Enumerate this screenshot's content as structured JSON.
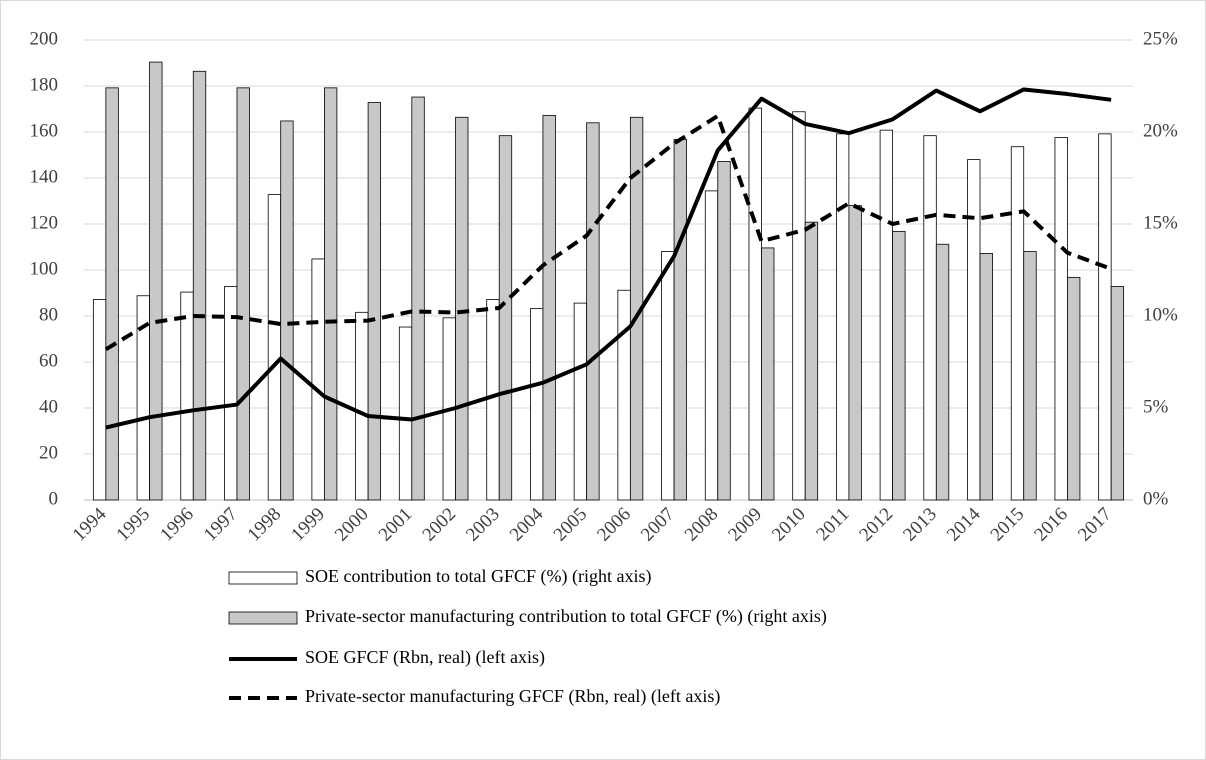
{
  "chart_data": {
    "type": "bar",
    "categories": [
      "1994",
      "1995",
      "1996",
      "1997",
      "1998",
      "1999",
      "2000",
      "2001",
      "2002",
      "2003",
      "2004",
      "2005",
      "2006",
      "2007",
      "2008",
      "2009",
      "2010",
      "2011",
      "2012",
      "2013",
      "2014",
      "2015",
      "2016",
      "2017"
    ],
    "ylim": [
      0,
      200
    ],
    "yticks": [
      0,
      20,
      40,
      60,
      80,
      100,
      120,
      140,
      160,
      180,
      200
    ],
    "y2lim": [
      0,
      25
    ],
    "y2ticks": [
      {
        "value": 0,
        "label": "0%"
      },
      {
        "value": 5,
        "label": "5%"
      },
      {
        "value": 10,
        "label": "10%"
      },
      {
        "value": 15,
        "label": "15%"
      },
      {
        "value": 20,
        "label": "20%"
      },
      {
        "value": 25,
        "label": "25%"
      }
    ],
    "grid": true,
    "legend": "bottom",
    "series": [
      {
        "name": "SOE contribution to total GFCF (%) (right axis)",
        "type": "bar",
        "axis": "y2",
        "color": "#ffffff",
        "values": [
          10.9,
          11.1,
          11.3,
          11.6,
          16.6,
          13.1,
          10.2,
          9.4,
          9.9,
          10.9,
          10.4,
          10.7,
          11.4,
          13.5,
          16.8,
          21.3,
          21.1,
          19.9,
          20.1,
          19.8,
          18.5,
          19.2,
          19.7,
          19.9
        ]
      },
      {
        "name": "Private-sector manufacturing contribution to total GFCF (%) (right axis)",
        "type": "bar",
        "axis": "y2",
        "color": "#c8c8c8",
        "values": [
          22.4,
          23.8,
          23.3,
          22.4,
          20.6,
          22.4,
          21.6,
          21.9,
          20.8,
          19.8,
          20.9,
          20.5,
          20.8,
          19.6,
          18.4,
          13.7,
          15.1,
          16.0,
          14.6,
          13.9,
          13.4,
          13.5,
          12.1,
          11.6
        ]
      },
      {
        "name": "SOE GFCF (Rbn, real) (left axis)",
        "type": "line",
        "linestyle": "solid",
        "color": "#000000",
        "values": [
          31.5,
          36,
          39,
          41.5,
          61.5,
          45,
          36.5,
          35,
          40,
          46,
          51,
          59,
          75.5,
          106,
          152,
          174.5,
          163.5,
          159.5,
          165.5,
          178,
          169,
          178.5,
          176.5,
          174
        ]
      },
      {
        "name": "Private-sector manufacturing GFCF (Rbn, real) (left axis)",
        "type": "line",
        "linestyle": "dashed",
        "color": "#000000",
        "values": [
          65.5,
          77,
          80,
          79.5,
          76.5,
          77.5,
          78,
          82,
          81.5,
          83.5,
          102,
          115,
          140,
          155,
          167,
          112.5,
          117.5,
          129,
          120,
          124,
          122.5,
          125.5,
          107.5,
          100.5
        ]
      }
    ]
  }
}
